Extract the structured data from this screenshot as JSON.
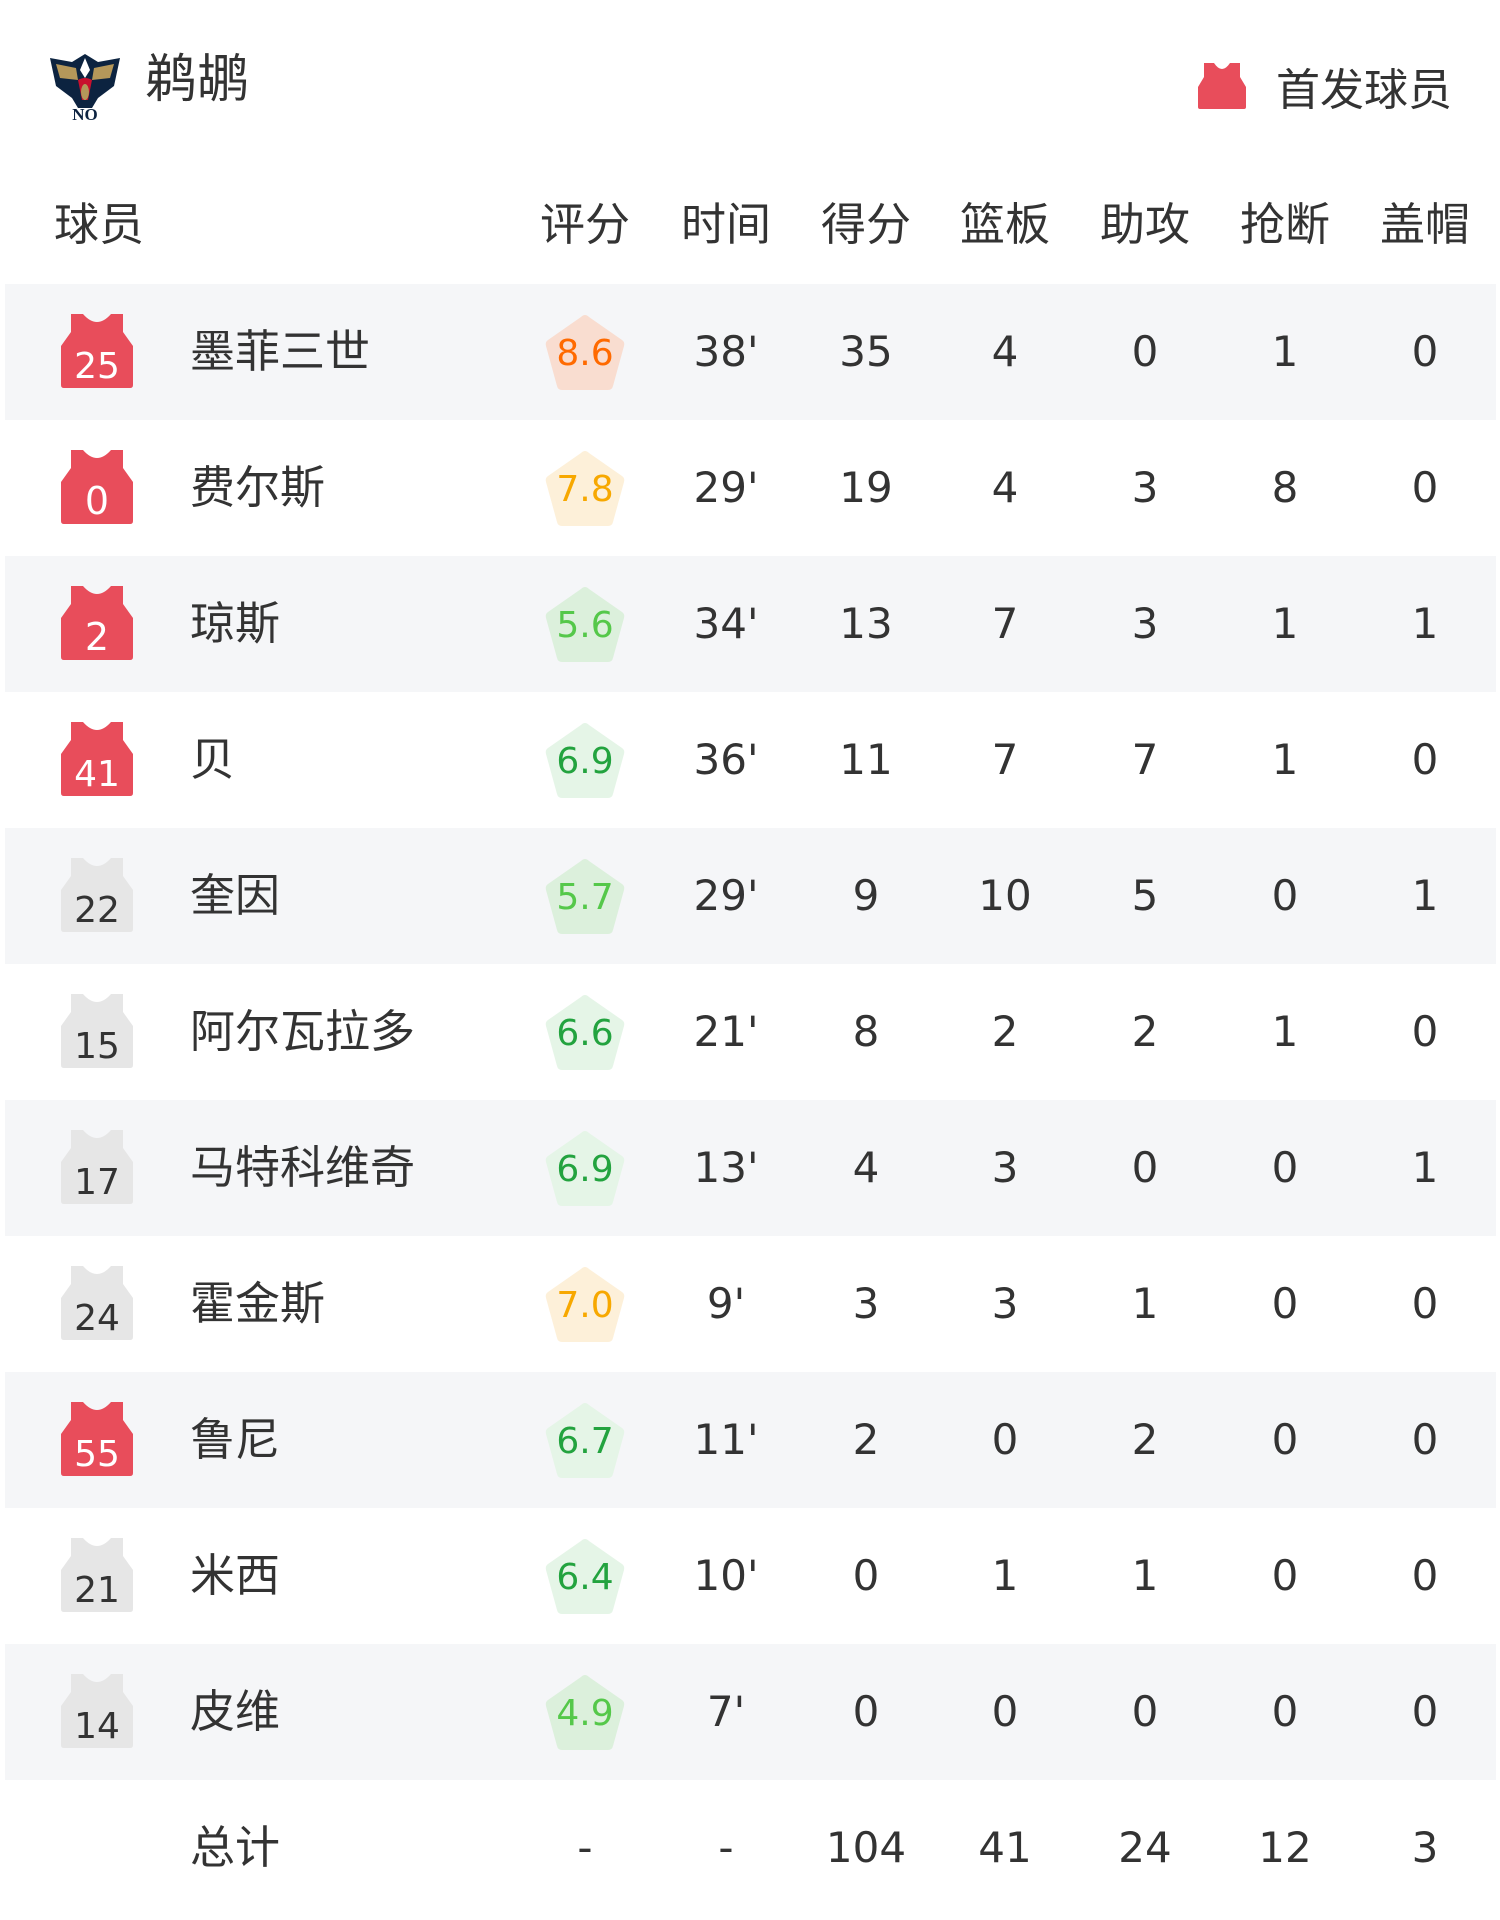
{
  "header": {
    "team_name": "鹈鹕",
    "logo_icon": "pelicans-logo",
    "legend_icon": "jersey-icon",
    "legend_label": "首发球员",
    "starter_color": "#e84d5b",
    "bench_color": "#e6e6e6"
  },
  "columns": [
    "球员",
    "评分",
    "时间",
    "得分",
    "篮板",
    "助攻",
    "抢断",
    "盖帽"
  ],
  "players": [
    {
      "number": "25",
      "starter": true,
      "name": "墨菲三世",
      "rating": "8.6",
      "rating_tier": "high",
      "time": "38'",
      "pts": "35",
      "reb": "4",
      "ast": "0",
      "stl": "1",
      "blk": "0"
    },
    {
      "number": "0",
      "starter": true,
      "name": "费尔斯",
      "rating": "7.8",
      "rating_tier": "good",
      "time": "29'",
      "pts": "19",
      "reb": "4",
      "ast": "3",
      "stl": "8",
      "blk": "0"
    },
    {
      "number": "2",
      "starter": true,
      "name": "琼斯",
      "rating": "5.6",
      "rating_tier": "low",
      "time": "34'",
      "pts": "13",
      "reb": "7",
      "ast": "3",
      "stl": "1",
      "blk": "1"
    },
    {
      "number": "41",
      "starter": true,
      "name": "贝",
      "rating": "6.9",
      "rating_tier": "mid",
      "time": "36'",
      "pts": "11",
      "reb": "7",
      "ast": "7",
      "stl": "1",
      "blk": "0"
    },
    {
      "number": "22",
      "starter": false,
      "name": "奎因",
      "rating": "5.7",
      "rating_tier": "low",
      "time": "29'",
      "pts": "9",
      "reb": "10",
      "ast": "5",
      "stl": "0",
      "blk": "1"
    },
    {
      "number": "15",
      "starter": false,
      "name": "阿尔瓦拉多",
      "rating": "6.6",
      "rating_tier": "mid",
      "time": "21'",
      "pts": "8",
      "reb": "2",
      "ast": "2",
      "stl": "1",
      "blk": "0"
    },
    {
      "number": "17",
      "starter": false,
      "name": "马特科维奇",
      "rating": "6.9",
      "rating_tier": "mid",
      "time": "13'",
      "pts": "4",
      "reb": "3",
      "ast": "0",
      "stl": "0",
      "blk": "1"
    },
    {
      "number": "24",
      "starter": false,
      "name": "霍金斯",
      "rating": "7.0",
      "rating_tier": "good",
      "time": "9'",
      "pts": "3",
      "reb": "3",
      "ast": "1",
      "stl": "0",
      "blk": "0"
    },
    {
      "number": "55",
      "starter": true,
      "name": "鲁尼",
      "rating": "6.7",
      "rating_tier": "mid",
      "time": "11'",
      "pts": "2",
      "reb": "0",
      "ast": "2",
      "stl": "0",
      "blk": "0"
    },
    {
      "number": "21",
      "starter": false,
      "name": "米西",
      "rating": "6.4",
      "rating_tier": "mid",
      "time": "10'",
      "pts": "0",
      "reb": "1",
      "ast": "1",
      "stl": "0",
      "blk": "0"
    },
    {
      "number": "14",
      "starter": false,
      "name": "皮维",
      "rating": "4.9",
      "rating_tier": "low",
      "time": "7'",
      "pts": "0",
      "reb": "0",
      "ast": "0",
      "stl": "0",
      "blk": "0"
    }
  ],
  "totals": {
    "label": "总计",
    "rating": "-",
    "time": "-",
    "pts": "104",
    "reb": "41",
    "ast": "24",
    "stl": "12",
    "blk": "3"
  },
  "rating_colors": {
    "high": {
      "text": "#ff6a00",
      "bg": "#f9ddd0"
    },
    "good": {
      "text": "#f7a800",
      "bg": "#fdf0d9"
    },
    "mid": {
      "text": "#23a33f",
      "bg": "#e5f5e7"
    },
    "low": {
      "text": "#55c84a",
      "bg": "#dcf0dc"
    }
  }
}
